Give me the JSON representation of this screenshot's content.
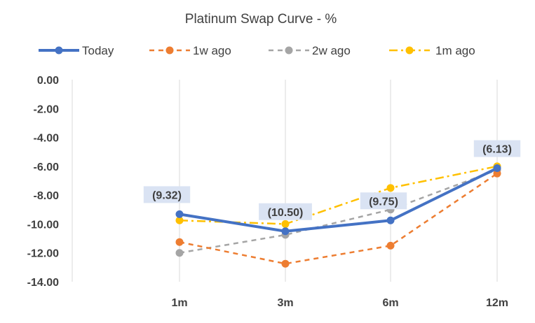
{
  "chart_data": {
    "type": "line",
    "title": "Platinum Swap Curve - %",
    "xlabel": "",
    "ylabel": "",
    "categories": [
      "1m",
      "3m",
      "6m",
      "12m"
    ],
    "ylim": [
      -14,
      0
    ],
    "y_ticks": [
      "0.00",
      "-2.00",
      "-4.00",
      "-6.00",
      "-8.00",
      "-10.00",
      "-12.00",
      "-14.00"
    ],
    "y_tick_values": [
      0,
      -2,
      -4,
      -6,
      -8,
      -10,
      -12,
      -14
    ],
    "grid": "vertical",
    "legend_position": "top",
    "series": [
      {
        "name": "Today",
        "values": [
          -9.32,
          -10.5,
          -9.75,
          -6.13
        ],
        "color": "#4472C4",
        "style": "solid",
        "data_labels": [
          "(9.32)",
          "(10.50)",
          "(9.75)",
          "(6.13)"
        ]
      },
      {
        "name": "1w ago",
        "values": [
          -11.25,
          -12.75,
          -11.5,
          -6.5
        ],
        "color": "#ED7D31",
        "style": "dash"
      },
      {
        "name": "2w ago",
        "values": [
          -12.0,
          -10.75,
          -9.0,
          -6.25
        ],
        "color": "#A5A5A5",
        "style": "dash"
      },
      {
        "name": "1m ago",
        "values": [
          -9.75,
          -10.0,
          -7.5,
          -6.0
        ],
        "color": "#FFC000",
        "style": "dashdot"
      }
    ]
  }
}
